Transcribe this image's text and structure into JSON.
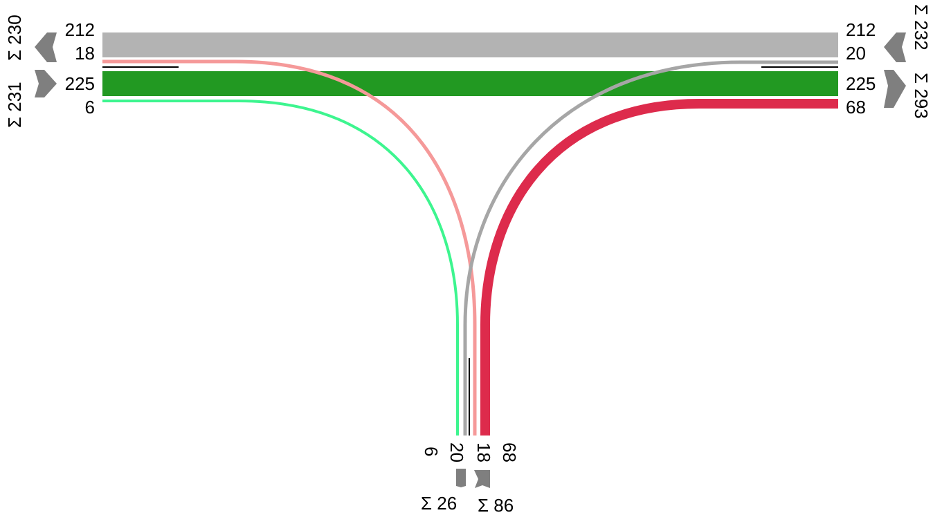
{
  "diagram": {
    "type": "traffic-flow-junction",
    "colors": {
      "west_through": "#b3b3b3",
      "west_turn": "#f59999",
      "east_through": "#229922",
      "east_turn": "#3df58f",
      "south_to_west": "#a6a6a6",
      "south_to_east": "#dd2b4c",
      "arrow": "#7f7f7f",
      "divider": "#000000"
    },
    "west_arm": {
      "inbound": {
        "sum": "Σ 230",
        "flows": [
          "212",
          "18"
        ]
      },
      "outbound": {
        "sum": "Σ 231",
        "flows": [
          "225",
          "6"
        ]
      }
    },
    "east_arm": {
      "inbound": {
        "sum": "Σ 232",
        "flows": [
          "212",
          "20"
        ]
      },
      "outbound": {
        "sum": "Σ 293",
        "flows": [
          "225",
          "68"
        ]
      }
    },
    "south_arm": {
      "flows": [
        "6",
        "20",
        "18",
        "68"
      ],
      "sum_left": "Σ 26",
      "sum_right": "Σ 86"
    }
  }
}
